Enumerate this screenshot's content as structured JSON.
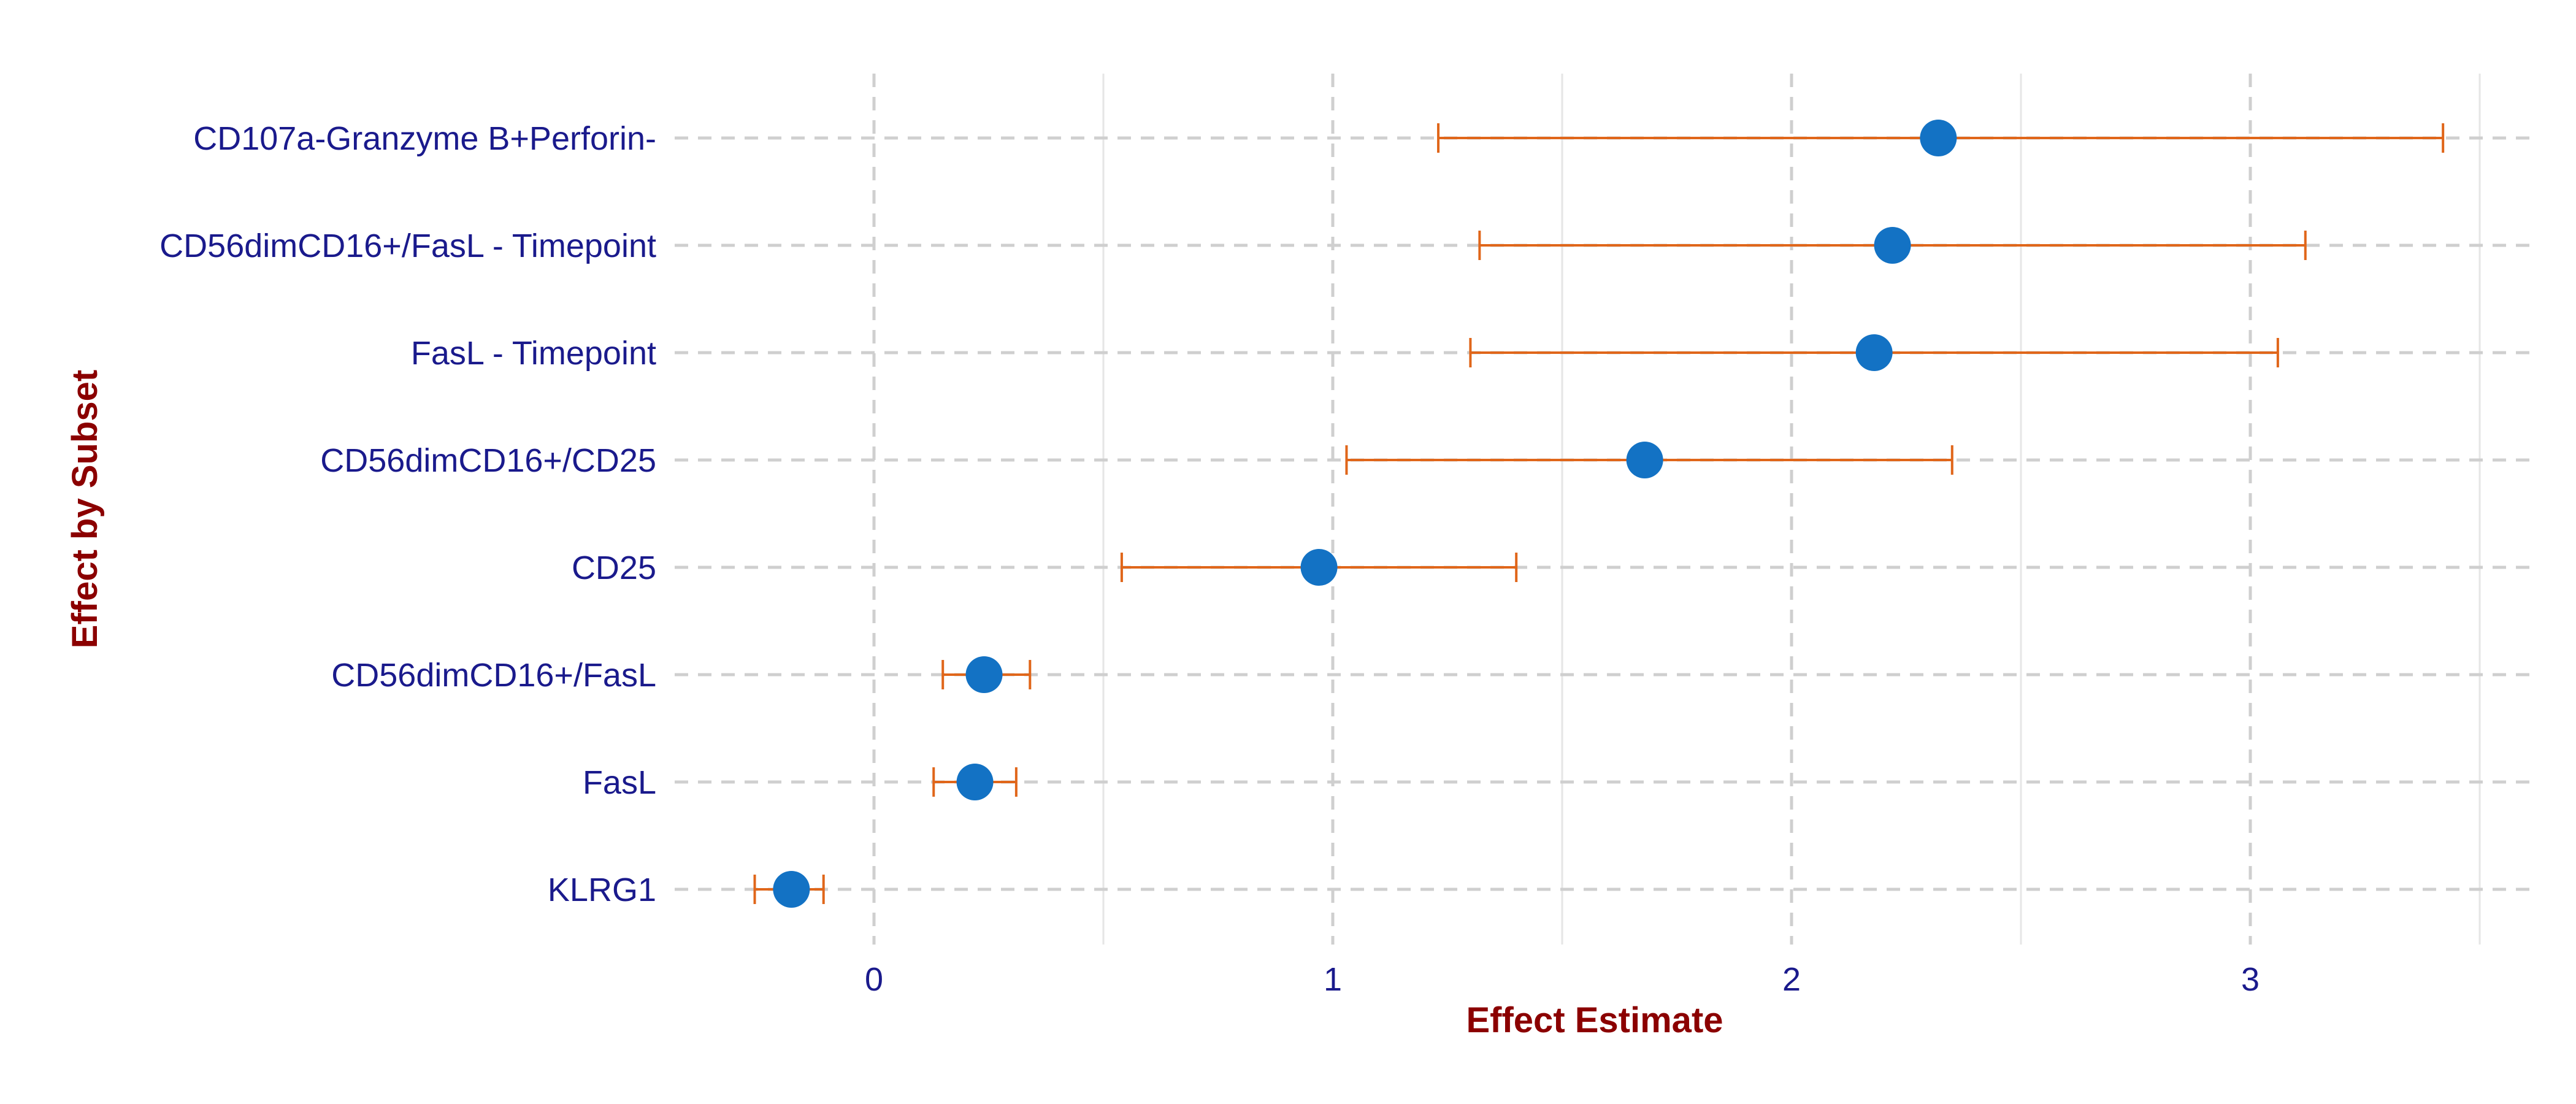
{
  "chart_data": {
    "type": "forest",
    "title": "",
    "xlabel": "Effect Estimate",
    "ylabel": "Effect by Subset",
    "xlim": [
      -0.44,
      3.6
    ],
    "xticks": [
      0,
      1,
      2,
      3
    ],
    "minor_xticks": [
      0.5,
      1.5,
      2.5,
      3.5
    ],
    "grid": true,
    "categories": [
      "CD107a-Granzyme B+Perforin-",
      "CD56dimCD16+/FasL - Timepoint",
      "FasL - Timepoint",
      "CD56dimCD16+/CD25",
      "CD25",
      "CD56dimCD16+/FasL",
      "FasL",
      "KLRG1"
    ],
    "estimates": [
      2.32,
      2.22,
      2.18,
      1.68,
      0.97,
      0.24,
      0.22,
      -0.18
    ],
    "ci_lower": [
      1.23,
      1.32,
      1.3,
      1.03,
      0.54,
      0.15,
      0.13,
      -0.26
    ],
    "ci_upper": [
      3.42,
      3.12,
      3.06,
      2.35,
      1.4,
      0.34,
      0.31,
      -0.11
    ],
    "colors": {
      "point": "#1372c4",
      "errorbar": "#e0661a",
      "category_text": "#1a1a8c",
      "axis_title": "#8b0000",
      "grid_major": "#cfcfcf",
      "grid_minor": "#e6e6e6"
    }
  }
}
